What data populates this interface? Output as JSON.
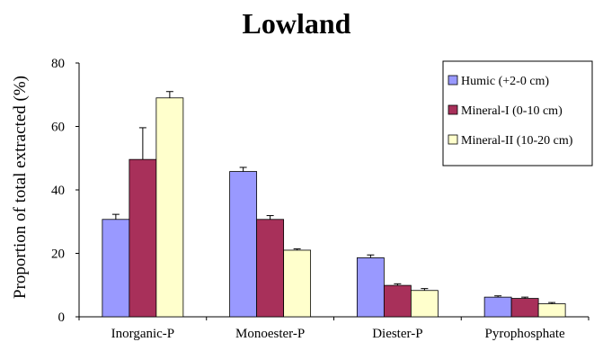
{
  "chart_data": {
    "type": "bar",
    "title": "Lowland",
    "xlabel": "",
    "ylabel": "Proportion of total extracted (%)",
    "ylim": [
      0,
      80
    ],
    "yticks": [
      0,
      20,
      40,
      60,
      80
    ],
    "grid": false,
    "legend_position": "top-right",
    "categories": [
      "Inorganic-P",
      "Monoester-P",
      "Diester-P",
      "Pyrophosphate"
    ],
    "series": [
      {
        "name": "Humic  (+2-0 cm)",
        "color": "#9999ff",
        "values": [
          30.7,
          45.8,
          18.6,
          6.2
        ],
        "errors": [
          1.6,
          1.3,
          0.9,
          0.4
        ]
      },
      {
        "name": "Mineral-I (0-10 cm)",
        "color": "#a8305a",
        "values": [
          49.6,
          30.7,
          9.9,
          5.8
        ],
        "errors": [
          10.0,
          1.2,
          0.5,
          0.4
        ]
      },
      {
        "name": "Mineral-II (10-20 cm)",
        "color": "#ffffcc",
        "values": [
          69.0,
          21.0,
          8.3,
          4.1
        ],
        "errors": [
          2.0,
          0.4,
          0.6,
          0.4
        ]
      }
    ]
  }
}
